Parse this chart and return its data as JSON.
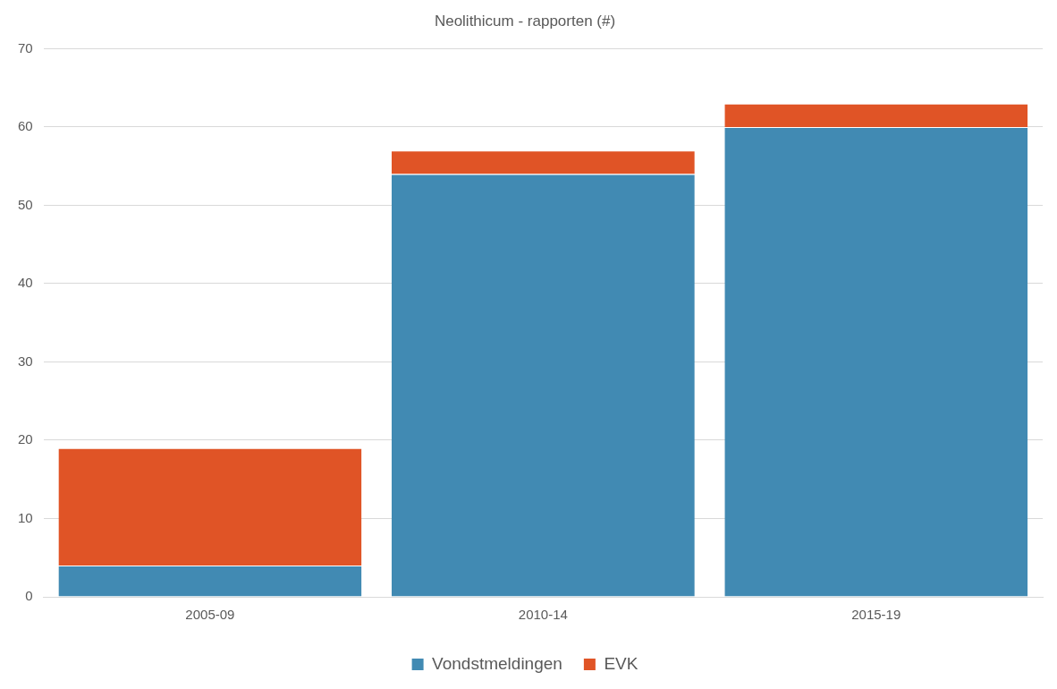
{
  "chart_data": {
    "type": "bar",
    "title": "Neolithicum - rapporten (#)",
    "categories": [
      "2005-09",
      "2010-14",
      "2015-19"
    ],
    "stacked": true,
    "series": [
      {
        "name": "Vondstmeldingen",
        "color": "#418ab3",
        "values": [
          4,
          54,
          60
        ]
      },
      {
        "name": "EVK",
        "color": "#e05426",
        "values": [
          15,
          3,
          3
        ]
      }
    ],
    "ylim": [
      0,
      70
    ],
    "yticks": [
      0,
      10,
      20,
      30,
      40,
      50,
      60,
      70
    ],
    "grid": "y",
    "legend": "bottom"
  }
}
